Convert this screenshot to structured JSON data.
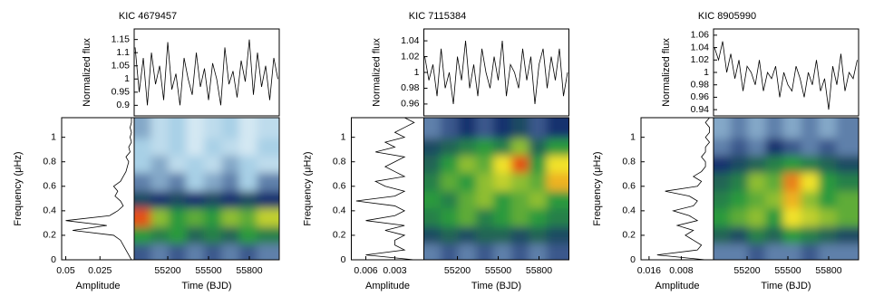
{
  "chart_data": [
    {
      "type": "line",
      "title": "KIC 4679457",
      "ylabel": "Normalized flux",
      "color": "#000000",
      "x": [
        54960,
        54990,
        55020,
        55050,
        55080,
        55110,
        55140,
        55170,
        55200,
        55230,
        55260,
        55290,
        55320,
        55350,
        55380,
        55410,
        55440,
        55470,
        55500,
        55530,
        55560,
        55590,
        55620,
        55650,
        55680,
        55710,
        55740,
        55770,
        55800,
        55830,
        55860,
        55890,
        55920,
        55950,
        55980,
        56010
      ],
      "values": [
        1.12,
        0.95,
        1.08,
        0.9,
        1.1,
        0.98,
        1.05,
        0.92,
        1.14,
        0.96,
        1.02,
        0.9,
        1.08,
        1.0,
        0.94,
        1.1,
        0.97,
        1.04,
        0.92,
        1.06,
        1.0,
        0.9,
        1.12,
        0.98,
        1.03,
        0.93,
        1.07,
        0.99,
        1.15,
        0.94,
        1.1,
        0.97,
        1.05,
        0.92,
        1.08,
        1.0
      ],
      "xlim": [
        54953,
        56020
      ],
      "ylim": [
        0.86,
        1.19
      ],
      "yticks": [
        0.9,
        0.95,
        1,
        1.05,
        1.1,
        1.15
      ]
    },
    {
      "type": "line",
      "orientation": "horizontal",
      "xlabel": "Amplitude",
      "ylabel": "Frequency (μHz)",
      "color": "#000000",
      "y": [
        0,
        0.04,
        0.08,
        0.12,
        0.16,
        0.2,
        0.24,
        0.28,
        0.32,
        0.36,
        0.4,
        0.44,
        0.48,
        0.52,
        0.56,
        0.6,
        0.64,
        0.68,
        0.72,
        0.76,
        0.8,
        0.84,
        0.88,
        0.92,
        0.96,
        1,
        1.04,
        1.08,
        1.12,
        1.16
      ],
      "values": [
        0.002,
        0.004,
        0.006,
        0.008,
        0.01,
        0.015,
        0.045,
        0.02,
        0.05,
        0.018,
        0.012,
        0.008,
        0.01,
        0.014,
        0.012,
        0.015,
        0.01,
        0.008,
        0.006,
        0.005,
        0.004,
        0.006,
        0.003,
        0.004,
        0.002,
        0.003,
        0.002,
        0.003,
        0.002,
        0.002
      ],
      "xlim": [
        0.053,
        0
      ],
      "xticks": [
        0.05,
        0.025
      ],
      "ylim": [
        0,
        1.16
      ],
      "yticks": [
        0,
        0.2,
        0.4,
        0.6,
        0.8,
        1
      ]
    },
    {
      "type": "heatmap",
      "xlabel": "Time (BJD)",
      "xlim": [
        54953,
        56020
      ],
      "xticks": [
        55200,
        55500,
        55800
      ],
      "ylim": [
        0,
        1.16
      ],
      "colors": [
        "#ffffff",
        "#a8d0e6",
        "#16306e",
        "#2c9a3c",
        "#f2e22a",
        "#e0200e"
      ],
      "x": [
        55020,
        55150,
        55280,
        55410,
        55540,
        55670,
        55800,
        55930
      ],
      "y": [
        0.07,
        0.21,
        0.35,
        0.5,
        0.64,
        0.79,
        0.93,
        1.07
      ],
      "z": [
        [
          0.35,
          0.3,
          0.35,
          0.3,
          0.35,
          0.3,
          0.35,
          0.3
        ],
        [
          0.6,
          0.55,
          0.6,
          0.5,
          0.55,
          0.5,
          0.6,
          0.55
        ],
        [
          0.95,
          0.7,
          0.6,
          0.65,
          0.6,
          0.7,
          0.65,
          0.75
        ],
        [
          0.45,
          0.4,
          0.45,
          0.4,
          0.45,
          0.4,
          0.45,
          0.4
        ],
        [
          0.3,
          0.25,
          0.3,
          0.2,
          0.25,
          0.3,
          0.2,
          0.3
        ],
        [
          0.2,
          0.25,
          0.15,
          0.2,
          0.15,
          0.25,
          0.2,
          0.15
        ],
        [
          0.2,
          0.15,
          0.2,
          0.1,
          0.2,
          0.15,
          0.1,
          0.2
        ],
        [
          0.25,
          0.15,
          0.2,
          0.1,
          0.15,
          0.2,
          0.1,
          0.15
        ]
      ]
    },
    {
      "type": "line",
      "title": "KIC 7115384",
      "ylabel": "Normalized flux",
      "color": "#000000",
      "x": [
        54960,
        54990,
        55020,
        55050,
        55080,
        55110,
        55140,
        55170,
        55200,
        55230,
        55260,
        55290,
        55320,
        55350,
        55380,
        55410,
        55440,
        55470,
        55500,
        55530,
        55560,
        55590,
        55620,
        55650,
        55680,
        55710,
        55740,
        55770,
        55800,
        55830,
        55860,
        55890,
        55920,
        55950,
        55980,
        56010
      ],
      "values": [
        1.02,
        0.99,
        1.01,
        0.97,
        1.03,
        0.98,
        1.0,
        0.96,
        1.02,
        0.99,
        1.04,
        0.98,
        1.01,
        0.97,
        1.03,
        1.0,
        0.98,
        1.02,
        0.99,
        1.04,
        0.97,
        1.01,
        1.0,
        0.98,
        1.03,
        0.99,
        1.02,
        0.96,
        1.01,
        1.03,
        0.98,
        1.02,
        0.99,
        1.03,
        0.97,
        1.0
      ],
      "xlim": [
        54953,
        56020
      ],
      "ylim": [
        0.945,
        1.055
      ],
      "yticks": [
        0.96,
        0.98,
        1,
        1.02,
        1.04
      ]
    },
    {
      "type": "line",
      "orientation": "horizontal",
      "xlabel": "Amplitude",
      "ylabel": "Frequency (μHz)",
      "color": "#000000",
      "y": [
        0,
        0.04,
        0.08,
        0.12,
        0.16,
        0.2,
        0.24,
        0.28,
        0.32,
        0.36,
        0.4,
        0.44,
        0.48,
        0.52,
        0.56,
        0.6,
        0.64,
        0.68,
        0.72,
        0.76,
        0.8,
        0.84,
        0.88,
        0.92,
        0.96,
        1,
        1.04,
        1.08,
        1.12,
        1.16
      ],
      "values": [
        0.001,
        0.006,
        0.002,
        0.003,
        0.003,
        0.002,
        0.004,
        0.002,
        0.006,
        0.003,
        0.002,
        0.003,
        0.007,
        0.003,
        0.002,
        0.004,
        0.005,
        0.002,
        0.003,
        0.004,
        0.003,
        0.002,
        0.005,
        0.003,
        0.004,
        0.002,
        0.003,
        0.002,
        0.001,
        0.002
      ],
      "xlim": [
        0.0075,
        0
      ],
      "xticks": [
        0.006,
        0.003
      ],
      "ylim": [
        0,
        1.16
      ],
      "yticks": [
        0,
        0.2,
        0.4,
        0.6,
        0.8,
        1
      ]
    },
    {
      "type": "heatmap",
      "xlabel": "Time (BJD)",
      "xlim": [
        54953,
        56020
      ],
      "xticks": [
        55200,
        55500,
        55800
      ],
      "ylim": [
        0,
        1.16
      ],
      "colors": [
        "#ffffff",
        "#a8d0e6",
        "#16306e",
        "#2c9a3c",
        "#f2e22a",
        "#e0200e"
      ],
      "x": [
        55020,
        55150,
        55280,
        55410,
        55540,
        55670,
        55800,
        55930
      ],
      "y": [
        0.07,
        0.21,
        0.35,
        0.5,
        0.64,
        0.79,
        0.93,
        1.07
      ],
      "z": [
        [
          0.3,
          0.35,
          0.3,
          0.35,
          0.3,
          0.35,
          0.3,
          0.35
        ],
        [
          0.45,
          0.5,
          0.45,
          0.5,
          0.5,
          0.45,
          0.5,
          0.45
        ],
        [
          0.55,
          0.6,
          0.65,
          0.55,
          0.6,
          0.65,
          0.6,
          0.55
        ],
        [
          0.6,
          0.55,
          0.65,
          0.7,
          0.6,
          0.65,
          0.7,
          0.6
        ],
        [
          0.55,
          0.65,
          0.6,
          0.7,
          0.75,
          0.7,
          0.65,
          0.85
        ],
        [
          0.5,
          0.6,
          0.7,
          0.65,
          0.8,
          0.95,
          0.6,
          0.8
        ],
        [
          0.45,
          0.5,
          0.55,
          0.6,
          0.55,
          0.7,
          0.5,
          0.6
        ],
        [
          0.3,
          0.35,
          0.4,
          0.35,
          0.4,
          0.45,
          0.35,
          0.4
        ]
      ]
    },
    {
      "type": "line",
      "title": "KIC 8905990",
      "ylabel": "Normalized flux",
      "color": "#000000",
      "x": [
        54960,
        54990,
        55020,
        55050,
        55080,
        55110,
        55140,
        55170,
        55200,
        55230,
        55260,
        55290,
        55320,
        55350,
        55380,
        55410,
        55440,
        55470,
        55500,
        55530,
        55560,
        55590,
        55620,
        55650,
        55680,
        55710,
        55740,
        55770,
        55800,
        55830,
        55860,
        55890,
        55920,
        55950,
        55980,
        56010
      ],
      "values": [
        1.04,
        1.02,
        1.05,
        1.0,
        1.03,
        0.99,
        1.02,
        0.97,
        1.01,
        1.0,
        0.98,
        1.02,
        0.97,
        1.0,
        0.99,
        1.01,
        0.96,
        1.0,
        0.98,
        0.97,
        1.01,
        0.99,
        0.96,
        1.0,
        0.98,
        1.02,
        0.97,
        0.99,
        0.94,
        1.01,
        0.98,
        1.03,
        0.97,
        1.0,
        0.99,
        1.02
      ],
      "xlim": [
        54953,
        56020
      ],
      "ylim": [
        0.93,
        1.07
      ],
      "yticks": [
        0.94,
        0.96,
        0.98,
        1,
        1.02,
        1.04,
        1.06
      ]
    },
    {
      "type": "line",
      "orientation": "horizontal",
      "xlabel": "Amplitude",
      "ylabel": "Frequency (μHz)",
      "color": "#000000",
      "y": [
        0,
        0.04,
        0.08,
        0.12,
        0.16,
        0.2,
        0.24,
        0.28,
        0.32,
        0.36,
        0.4,
        0.44,
        0.48,
        0.52,
        0.56,
        0.6,
        0.64,
        0.68,
        0.72,
        0.76,
        0.8,
        0.84,
        0.88,
        0.92,
        0.96,
        1,
        1.04,
        1.08,
        1.12,
        1.16
      ],
      "values": [
        0.002,
        0.014,
        0.004,
        0.003,
        0.005,
        0.007,
        0.005,
        0.009,
        0.004,
        0.006,
        0.01,
        0.005,
        0.004,
        0.006,
        0.012,
        0.004,
        0.003,
        0.005,
        0.003,
        0.002,
        0.002,
        0.003,
        0.002,
        0.002,
        0.001,
        0.002,
        0.001,
        0.001,
        0.002,
        0.001
      ],
      "xlim": [
        0.018,
        0
      ],
      "xticks": [
        0.016,
        0.008
      ],
      "ylim": [
        0,
        1.16
      ],
      "yticks": [
        0,
        0.2,
        0.4,
        0.6,
        0.8,
        1
      ]
    },
    {
      "type": "heatmap",
      "xlabel": "Time (BJD)",
      "xlim": [
        54953,
        56020
      ],
      "xticks": [
        55200,
        55500,
        55800
      ],
      "ylim": [
        0,
        1.16
      ],
      "colors": [
        "#ffffff",
        "#a8d0e6",
        "#16306e",
        "#2c9a3c",
        "#f2e22a",
        "#e0200e"
      ],
      "x": [
        55020,
        55150,
        55280,
        55410,
        55540,
        55670,
        55800,
        55930
      ],
      "y": [
        0.07,
        0.21,
        0.35,
        0.5,
        0.64,
        0.79,
        0.93,
        1.07
      ],
      "z": [
        [
          0.3,
          0.3,
          0.35,
          0.3,
          0.3,
          0.35,
          0.3,
          0.3
        ],
        [
          0.5,
          0.45,
          0.55,
          0.5,
          0.6,
          0.55,
          0.5,
          0.45
        ],
        [
          0.6,
          0.65,
          0.7,
          0.6,
          0.8,
          0.75,
          0.7,
          0.65
        ],
        [
          0.55,
          0.6,
          0.65,
          0.7,
          0.85,
          0.7,
          0.6,
          0.65
        ],
        [
          0.5,
          0.55,
          0.7,
          0.65,
          0.9,
          0.8,
          0.6,
          0.55
        ],
        [
          0.4,
          0.45,
          0.5,
          0.55,
          0.6,
          0.55,
          0.5,
          0.45
        ],
        [
          0.3,
          0.35,
          0.3,
          0.4,
          0.35,
          0.3,
          0.35,
          0.3
        ],
        [
          0.25,
          0.3,
          0.25,
          0.3,
          0.25,
          0.3,
          0.25,
          0.3
        ]
      ]
    }
  ]
}
